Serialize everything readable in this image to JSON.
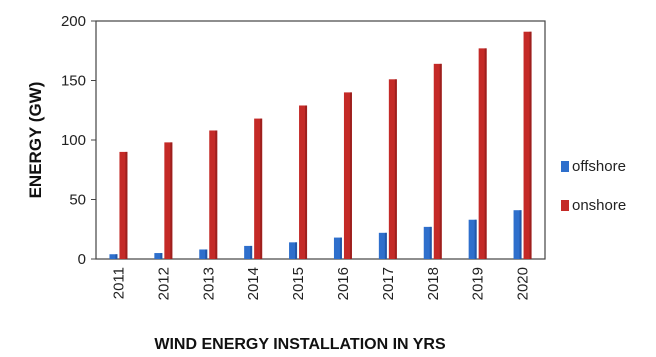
{
  "chart_data": {
    "type": "bar",
    "categories": [
      "2011",
      "2012",
      "2013",
      "2014",
      "2015",
      "2016",
      "2017",
      "2018",
      "2019",
      "2020"
    ],
    "series": [
      {
        "name": "offshore",
        "values": [
          4,
          5,
          8,
          11,
          14,
          18,
          22,
          27,
          33,
          41
        ]
      },
      {
        "name": "onshore",
        "values": [
          90,
          98,
          108,
          118,
          129,
          140,
          151,
          164,
          177,
          191
        ]
      }
    ],
    "title": "",
    "xlabel": "WIND ENERGY INSTALLATION IN YRS",
    "ylabel": "ENERGY (GW)",
    "ylim": [
      0,
      200
    ],
    "yticks": [
      0,
      50,
      100,
      150,
      200
    ],
    "grid": false,
    "legend_position": "right",
    "colors": {
      "offshore": "#2e6fcc",
      "onshore": "#c42a27"
    }
  }
}
